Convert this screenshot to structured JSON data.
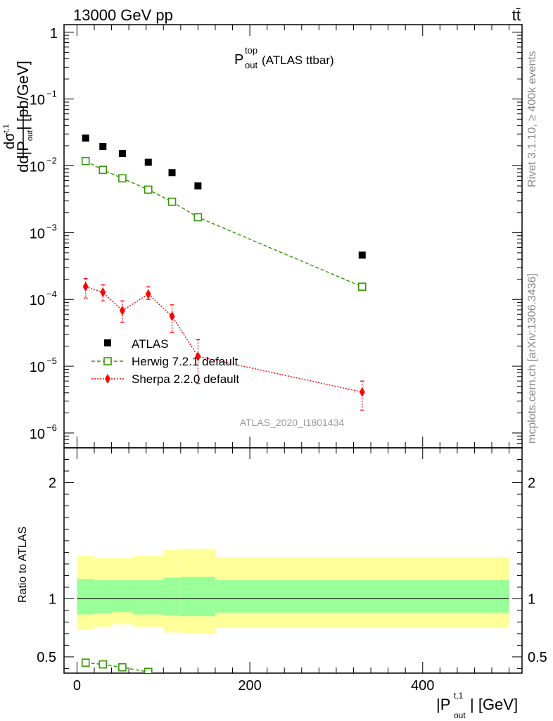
{
  "header": {
    "left": "13000 GeV pp",
    "right": "tt̄"
  },
  "side_labels": {
    "rivet": "Rivet 3.1.10, ≥ 400k events",
    "mcplots": "mcplots.cern.ch [arXiv:1306.3436]"
  },
  "watermark": "ATLAS_2020_I1801434",
  "plot_title": {
    "main": "P",
    "sup": "top",
    "sub": "out",
    "rest": " (ATLAS ttbar)"
  },
  "y_axis_label": {
    "num": "dσ",
    "num_sup": "t,1",
    "den": "d|P",
    "den_sup": "t,1",
    "den_sub": "out",
    "units": "| [pb/GeV]"
  },
  "x_axis_label": {
    "main": "|P",
    "sup": "t,1",
    "sub": "out",
    "rest": "| [GeV]"
  },
  "ratio_y_label": "Ratio to ATLAS",
  "colors": {
    "atlas": "#000000",
    "herwig": "#339900",
    "sherpa": "#ff0000",
    "band_inner": "#99ff99",
    "band_outer": "#ffff99"
  },
  "chart_data": [
    {
      "type": "scatter",
      "panel": "main",
      "ylog": true,
      "xlim": [
        -15,
        515
      ],
      "ylim": [
        6e-07,
        1.3
      ],
      "y_ticks": [
        {
          "value": 1,
          "label": "1"
        },
        {
          "value": 0.1,
          "label": "10",
          "exp": "−1"
        },
        {
          "value": 0.01,
          "label": "10",
          "exp": "−2"
        },
        {
          "value": 0.001,
          "label": "10",
          "exp": "−3"
        },
        {
          "value": 0.0001,
          "label": "10",
          "exp": "−4"
        },
        {
          "value": 1e-05,
          "label": "10",
          "exp": "−5"
        },
        {
          "value": 1e-06,
          "label": "10",
          "exp": "−6"
        }
      ],
      "x_ticks": [
        0,
        200,
        400
      ],
      "legend_position": "bottom-left",
      "series": [
        {
          "name": "ATLAS",
          "marker": "filled-square",
          "x": [
            10,
            30,
            52.5,
            82.5,
            110,
            140,
            330
          ],
          "y": [
            0.026,
            0.0195,
            0.0153,
            0.0113,
            0.0079,
            0.005,
            0.00046
          ]
        },
        {
          "name": "Herwig 7.2.1 default",
          "marker": "open-square",
          "line": "dashed",
          "x": [
            10,
            30,
            52.5,
            82.5,
            110,
            140,
            330
          ],
          "y": [
            0.0118,
            0.0087,
            0.0065,
            0.0044,
            0.0029,
            0.0017,
            0.000155
          ]
        },
        {
          "name": "Sherpa 2.2.0 default",
          "marker": "filled-diamond",
          "line": "dotted",
          "x": [
            10,
            30,
            52.5,
            82.5,
            110,
            140,
            330
          ],
          "y": [
            0.000155,
            0.000128,
            6.8e-05,
            0.00012,
            5.6e-05,
            1.4e-05,
            4.1e-06
          ],
          "y_low": [
            0.000105,
            9.5e-05,
            4.5e-05,
            0.0001,
            3.2e-05,
            5.5e-06,
            2.2e-06
          ],
          "y_high": [
            0.000205,
            0.000165,
            9.5e-05,
            0.000155,
            8.3e-05,
            2.5e-05,
            6e-06
          ]
        }
      ]
    },
    {
      "type": "line",
      "panel": "ratio",
      "xlim": [
        -15,
        515
      ],
      "ylim": [
        0.36,
        2.3
      ],
      "y_ticks": [
        0.5,
        1,
        2
      ],
      "x_ticks": [
        0,
        200,
        400
      ],
      "reference_line": 1,
      "uncertainty_bands": {
        "bins": [
          [
            0,
            20
          ],
          [
            20,
            40
          ],
          [
            40,
            65
          ],
          [
            65,
            100
          ],
          [
            100,
            120
          ],
          [
            120,
            160
          ],
          [
            160,
            500
          ]
        ],
        "inner_low": [
          0.865,
          0.875,
          0.885,
          0.865,
          0.855,
          0.85,
          0.88
        ],
        "inner_high": [
          1.17,
          1.16,
          1.16,
          1.16,
          1.18,
          1.19,
          1.16
        ],
        "outer_low": [
          0.73,
          0.76,
          0.78,
          0.76,
          0.71,
          0.7,
          0.75
        ],
        "outer_high": [
          1.37,
          1.35,
          1.35,
          1.37,
          1.42,
          1.43,
          1.36
        ]
      },
      "series": [
        {
          "name": "Herwig 7.2.1 default",
          "marker": "open-square",
          "line": "dashed",
          "x": [
            10,
            30,
            52.5,
            82.5
          ],
          "y": [
            0.45,
            0.435,
            0.41,
            0.37
          ]
        }
      ]
    }
  ]
}
